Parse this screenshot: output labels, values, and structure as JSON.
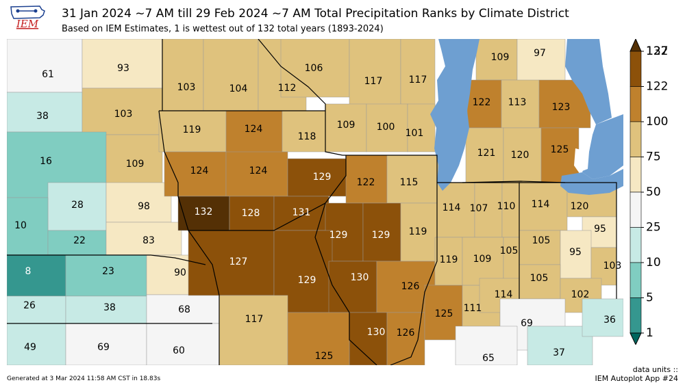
{
  "header": {
    "title": "31 Jan 2024 ~7 AM till 29 Feb 2024 ~7 AM Total Precipitation Ranks by Climate District",
    "subtitle": "Based on IEM Estimates, 1 is wettest out of 132 total years (1893-2024)",
    "logo_text": "IEM"
  },
  "footer": {
    "units": "data units ::",
    "generated": "Generated at 3 Mar 2024 11:58 AM CST in 18.83s",
    "app": "IEM Autoplot App #24"
  },
  "colors": {
    "water": "#6e9fd1",
    "border": "#000000",
    "bins": [
      "#00665e",
      "#35978f",
      "#80cdc1",
      "#c7eae5",
      "#f5f5f5",
      "#f6e8c3",
      "#dfc27d",
      "#bf812d",
      "#8c510a",
      "#543005"
    ]
  },
  "colorbar": {
    "ticks": [
      "1",
      "5",
      "10",
      "25",
      "50",
      "75",
      "100",
      "122",
      "127",
      "132"
    ]
  },
  "districts": [
    {
      "value": "61"
    },
    {
      "value": "93"
    },
    {
      "value": "38"
    },
    {
      "value": "103"
    },
    {
      "value": "16"
    },
    {
      "value": "109"
    },
    {
      "value": "28"
    },
    {
      "value": "98"
    },
    {
      "value": "10"
    },
    {
      "value": "22"
    },
    {
      "value": "83"
    },
    {
      "value": "8"
    },
    {
      "value": "23"
    },
    {
      "value": "90"
    },
    {
      "value": "26"
    },
    {
      "value": "38"
    },
    {
      "value": "68"
    },
    {
      "value": "49"
    },
    {
      "value": "69"
    },
    {
      "value": "60"
    },
    {
      "value": "103"
    },
    {
      "value": "104"
    },
    {
      "value": "112"
    },
    {
      "value": "106"
    },
    {
      "value": "117"
    },
    {
      "value": "117"
    },
    {
      "value": "119"
    },
    {
      "value": "124"
    },
    {
      "value": "118"
    },
    {
      "value": "109"
    },
    {
      "value": "100"
    },
    {
      "value": "101"
    },
    {
      "value": "124"
    },
    {
      "value": "124"
    },
    {
      "value": "129"
    },
    {
      "value": "122"
    },
    {
      "value": "115"
    },
    {
      "value": "132"
    },
    {
      "value": "128"
    },
    {
      "value": "131"
    },
    {
      "value": "129"
    },
    {
      "value": "129"
    },
    {
      "value": "119"
    },
    {
      "value": "127"
    },
    {
      "value": "129"
    },
    {
      "value": "130"
    },
    {
      "value": "126"
    },
    {
      "value": "117"
    },
    {
      "value": "130"
    },
    {
      "value": "126"
    },
    {
      "value": "125"
    },
    {
      "value": "125"
    },
    {
      "value": "111"
    },
    {
      "value": "109"
    },
    {
      "value": "97"
    },
    {
      "value": "122"
    },
    {
      "value": "113"
    },
    {
      "value": "123"
    },
    {
      "value": "121"
    },
    {
      "value": "120"
    },
    {
      "value": "125"
    },
    {
      "value": "114"
    },
    {
      "value": "107"
    },
    {
      "value": "110"
    },
    {
      "value": "119"
    },
    {
      "value": "109"
    },
    {
      "value": "105"
    },
    {
      "value": "114"
    },
    {
      "value": "114"
    },
    {
      "value": "120"
    },
    {
      "value": "95"
    },
    {
      "value": "105"
    },
    {
      "value": "95"
    },
    {
      "value": "103"
    },
    {
      "value": "105"
    },
    {
      "value": "102"
    },
    {
      "value": "69"
    },
    {
      "value": "65"
    },
    {
      "value": "37"
    },
    {
      "value": "36"
    }
  ]
}
